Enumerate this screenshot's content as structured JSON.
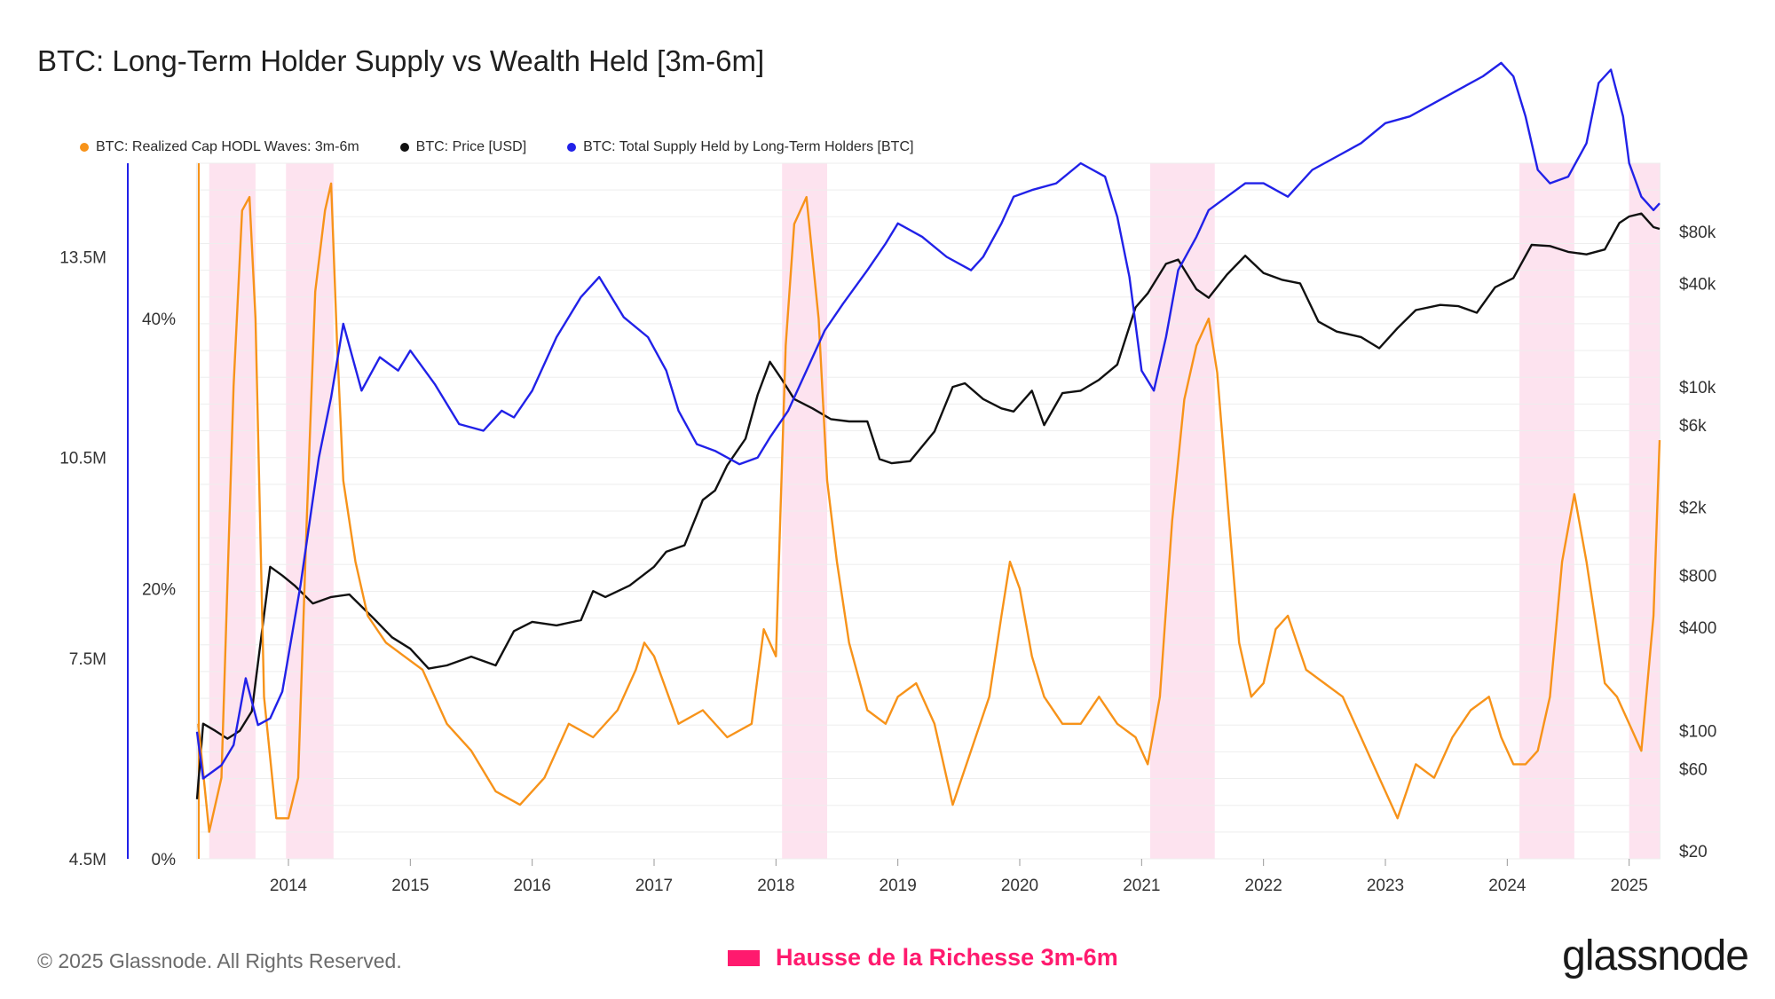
{
  "title": "BTC: Long-Term Holder Supply vs Wealth Held [3m-6m]",
  "legend": [
    {
      "label": "BTC: Realized Cap HODL Waves: 3m-6m",
      "color": "#f7931a"
    },
    {
      "label": "BTC: Price [USD]",
      "color": "#111111"
    },
    {
      "label": "BTC: Total Supply Held by Long-Term Holders [BTC]",
      "color": "#2121e8"
    }
  ],
  "footer": {
    "copyright": "© 2025 Glassnode. All Rights Reserved.",
    "highlight_label": "Hausse de la Richesse 3m-6m",
    "brand": "glassnode"
  },
  "colors": {
    "highlight": "#ff1a6e",
    "band": "#fde3ef",
    "hodl": "#f7931a",
    "price": "#111111",
    "lth": "#2121e8"
  },
  "chart_data": {
    "type": "line",
    "title": "BTC: Long-Term Holder Supply vs Wealth Held [3m-6m]",
    "x_range": [
      2013.25,
      2025.25
    ],
    "x_ticks": [
      "2014",
      "2015",
      "2016",
      "2017",
      "2018",
      "2019",
      "2020",
      "2021",
      "2022",
      "2023",
      "2024",
      "2025"
    ],
    "axes": {
      "lth_axis": {
        "ticks": [
          "4.5M",
          "7.5M",
          "10.5M",
          "13.5M"
        ],
        "values": [
          4500000,
          7500000,
          10500000,
          13500000
        ],
        "range": [
          4500000,
          14900000
        ]
      },
      "pct_axis": {
        "ticks": [
          "0%",
          "20%",
          "40%"
        ],
        "values": [
          0,
          20,
          40
        ],
        "range": [
          0,
          51.5
        ]
      },
      "price_axis": {
        "scale": "log",
        "ticks": [
          "$20",
          "$60",
          "$100",
          "$400",
          "$800",
          "$2k",
          "$6k",
          "$10k",
          "$40k",
          "$80k"
        ],
        "values": [
          20,
          60,
          100,
          400,
          800,
          2000,
          6000,
          10000,
          40000,
          80000
        ],
        "range": [
          18,
          200000
        ]
      }
    },
    "highlight_periods": [
      [
        2013.35,
        2013.73
      ],
      [
        2013.98,
        2014.37
      ],
      [
        2018.05,
        2018.42
      ],
      [
        2021.07,
        2021.6
      ],
      [
        2024.1,
        2024.55
      ],
      [
        2025.0,
        2025.25
      ]
    ],
    "series": [
      {
        "name": "BTC: Realized Cap HODL Waves: 3m-6m",
        "axis": "pct_axis",
        "x": [
          2013.26,
          2013.35,
          2013.45,
          2013.55,
          2013.62,
          2013.68,
          2013.73,
          2013.8,
          2013.9,
          2014.0,
          2014.08,
          2014.15,
          2014.22,
          2014.3,
          2014.35,
          2014.4,
          2014.45,
          2014.55,
          2014.65,
          2014.8,
          2014.95,
          2015.1,
          2015.3,
          2015.5,
          2015.7,
          2015.9,
          2016.1,
          2016.3,
          2016.5,
          2016.7,
          2016.85,
          2016.92,
          2017.0,
          2017.2,
          2017.4,
          2017.6,
          2017.8,
          2017.9,
          2018.0,
          2018.08,
          2018.15,
          2018.25,
          2018.35,
          2018.42,
          2018.5,
          2018.6,
          2018.75,
          2018.9,
          2019.0,
          2019.15,
          2019.3,
          2019.45,
          2019.6,
          2019.75,
          2019.85,
          2019.92,
          2020.0,
          2020.1,
          2020.2,
          2020.35,
          2020.5,
          2020.65,
          2020.8,
          2020.95,
          2021.05,
          2021.15,
          2021.25,
          2021.35,
          2021.45,
          2021.55,
          2021.62,
          2021.7,
          2021.8,
          2021.9,
          2022.0,
          2022.1,
          2022.2,
          2022.35,
          2022.5,
          2022.65,
          2022.8,
          2022.95,
          2023.1,
          2023.25,
          2023.4,
          2023.55,
          2023.7,
          2023.85,
          2023.95,
          2024.05,
          2024.15,
          2024.25,
          2024.35,
          2024.45,
          2024.55,
          2024.65,
          2024.8,
          2024.9,
          2025.0,
          2025.1,
          2025.2,
          2025.25
        ],
        "values": [
          10,
          2,
          6,
          35,
          48,
          49,
          40,
          12,
          3,
          3,
          6,
          25,
          42,
          48,
          50,
          38,
          28,
          22,
          18,
          16,
          15,
          14,
          10,
          8,
          5,
          4,
          6,
          10,
          9,
          11,
          14,
          16,
          15,
          10,
          11,
          9,
          10,
          17,
          15,
          38,
          47,
          49,
          40,
          28,
          22,
          16,
          11,
          10,
          12,
          13,
          10,
          4,
          8,
          12,
          18,
          22,
          20,
          15,
          12,
          10,
          10,
          12,
          10,
          9,
          7,
          12,
          25,
          34,
          38,
          40,
          36,
          27,
          16,
          12,
          13,
          17,
          18,
          14,
          13,
          12,
          9,
          6,
          3,
          7,
          6,
          9,
          11,
          12,
          9,
          7,
          7,
          8,
          12,
          22,
          27,
          22,
          13,
          12,
          10,
          8,
          18,
          31
        ]
      },
      {
        "name": "BTC: Price [USD]",
        "axis": "price_axis",
        "x": [
          2013.25,
          2013.3,
          2013.4,
          2013.5,
          2013.6,
          2013.7,
          2013.85,
          2013.95,
          2014.05,
          2014.2,
          2014.35,
          2014.5,
          2014.7,
          2014.85,
          2015.0,
          2015.15,
          2015.3,
          2015.5,
          2015.7,
          2015.85,
          2016.0,
          2016.2,
          2016.4,
          2016.5,
          2016.6,
          2016.8,
          2017.0,
          2017.1,
          2017.25,
          2017.4,
          2017.5,
          2017.6,
          2017.75,
          2017.85,
          2017.95,
          2018.05,
          2018.15,
          2018.3,
          2018.45,
          2018.6,
          2018.75,
          2018.85,
          2018.95,
          2019.1,
          2019.3,
          2019.45,
          2019.55,
          2019.7,
          2019.85,
          2019.95,
          2020.1,
          2020.2,
          2020.35,
          2020.5,
          2020.65,
          2020.8,
          2020.95,
          2021.05,
          2021.2,
          2021.3,
          2021.45,
          2021.55,
          2021.7,
          2021.85,
          2022.0,
          2022.15,
          2022.3,
          2022.45,
          2022.6,
          2022.8,
          2022.95,
          2023.1,
          2023.25,
          2023.45,
          2023.6,
          2023.75,
          2023.9,
          2024.05,
          2024.2,
          2024.35,
          2024.5,
          2024.65,
          2024.8,
          2024.92,
          2025.0,
          2025.1,
          2025.2,
          2025.25
        ],
        "values": [
          40,
          110,
          100,
          90,
          100,
          130,
          900,
          800,
          700,
          550,
          600,
          620,
          450,
          350,
          300,
          230,
          240,
          270,
          240,
          380,
          430,
          410,
          440,
          650,
          600,
          700,
          900,
          1100,
          1200,
          2200,
          2500,
          3500,
          5000,
          9000,
          14000,
          11000,
          8500,
          7500,
          6500,
          6300,
          6300,
          3800,
          3600,
          3700,
          5500,
          10000,
          10500,
          8500,
          7500,
          7200,
          9500,
          6000,
          9200,
          9500,
          11000,
          13500,
          29000,
          35000,
          52000,
          55000,
          37000,
          33000,
          45000,
          58000,
          46000,
          42000,
          40000,
          24000,
          21000,
          19500,
          16800,
          22000,
          28000,
          30000,
          29500,
          27000,
          38000,
          43000,
          67000,
          66000,
          61000,
          59000,
          63000,
          90000,
          98000,
          102000,
          85000,
          83000
        ]
      },
      {
        "name": "BTC: Total Supply Held by Long-Term Holders [BTC]",
        "axis": "lth_axis",
        "x": [
          2013.25,
          2013.3,
          2013.45,
          2013.55,
          2013.65,
          2013.75,
          2013.85,
          2013.95,
          2014.1,
          2014.25,
          2014.35,
          2014.45,
          2014.6,
          2014.75,
          2014.9,
          2015.0,
          2015.2,
          2015.4,
          2015.6,
          2015.75,
          2015.85,
          2016.0,
          2016.2,
          2016.4,
          2016.55,
          2016.75,
          2016.95,
          2017.1,
          2017.2,
          2017.35,
          2017.5,
          2017.7,
          2017.85,
          2017.95,
          2018.1,
          2018.25,
          2018.4,
          2018.55,
          2018.75,
          2018.9,
          2019.0,
          2019.2,
          2019.4,
          2019.6,
          2019.7,
          2019.85,
          2019.95,
          2020.1,
          2020.3,
          2020.5,
          2020.7,
          2020.8,
          2020.9,
          2021.0,
          2021.1,
          2021.2,
          2021.3,
          2021.45,
          2021.55,
          2021.7,
          2021.85,
          2022.0,
          2022.2,
          2022.4,
          2022.6,
          2022.8,
          2023.0,
          2023.2,
          2023.4,
          2023.6,
          2023.8,
          2023.95,
          2024.05,
          2024.15,
          2024.25,
          2024.35,
          2024.5,
          2024.65,
          2024.75,
          2024.85,
          2024.95,
          2025.0,
          2025.1,
          2025.2,
          2025.25
        ],
        "values": [
          6.4,
          5.7,
          5.9,
          6.2,
          7.2,
          6.5,
          6.6,
          7.0,
          8.6,
          10.5,
          11.4,
          12.5,
          11.5,
          12.0,
          11.8,
          12.1,
          11.6,
          11.0,
          10.9,
          11.2,
          11.1,
          11.5,
          12.3,
          12.9,
          13.2,
          12.6,
          12.3,
          11.8,
          11.2,
          10.7,
          10.6,
          10.4,
          10.5,
          10.8,
          11.2,
          11.8,
          12.4,
          12.8,
          13.3,
          13.7,
          14.0,
          13.8,
          13.5,
          13.3,
          13.5,
          14.0,
          14.4,
          14.5,
          14.6,
          14.9,
          14.7,
          14.1,
          13.2,
          11.8,
          11.5,
          12.3,
          13.3,
          13.8,
          14.2,
          14.4,
          14.6,
          14.6,
          14.4,
          14.8,
          15.0,
          15.2,
          15.5,
          15.6,
          15.8,
          16.0,
          16.2,
          16.4,
          16.2,
          15.6,
          14.8,
          14.6,
          14.7,
          15.2,
          16.1,
          16.3,
          15.6,
          14.9,
          14.4,
          14.2,
          14.3
        ]
      }
    ]
  }
}
